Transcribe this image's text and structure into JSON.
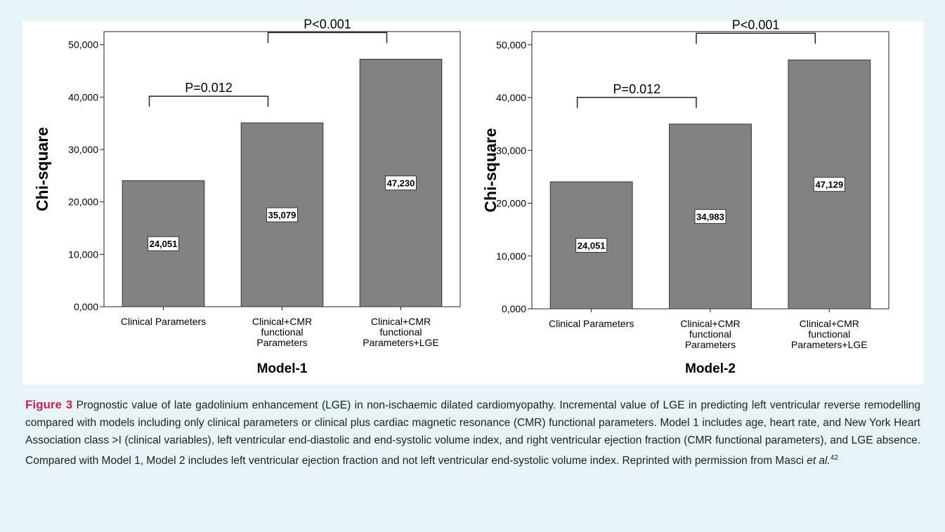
{
  "chart_data": [
    {
      "type": "bar",
      "ylabel": "Chi-square",
      "xlabel": "Model-1",
      "categories": [
        "Clinical Parameters",
        "Clinical+CMR\nfunctional\nParameters",
        "Clinical+CMR\nfunctional\nParameters+LGE"
      ],
      "values": [
        24.051,
        35.079,
        47.23
      ],
      "value_labels": [
        "24,051",
        "35,079",
        "47,230"
      ],
      "color": "#828282",
      "ylim": [
        0,
        52.5
      ],
      "yticks": [
        {
          "value": 0,
          "label": "0,000"
        },
        {
          "value": 10,
          "label": "10,000"
        },
        {
          "value": 20,
          "label": "20,000"
        },
        {
          "value": 30,
          "label": "30,000"
        },
        {
          "value": 40,
          "label": "40,000"
        },
        {
          "value": 50,
          "label": "50,000"
        }
      ],
      "annotations": [
        "P=0.012",
        "P<0.001"
      ]
    },
    {
      "type": "bar",
      "ylabel": "Chi-square",
      "xlabel": "Model-2",
      "categories": [
        "Clinical Parameters",
        "Clinical+CMR\nfunctional\nParameters",
        "Clinical+CMR\nfunctional\nParameters+LGE"
      ],
      "values": [
        24.051,
        34.983,
        47.129
      ],
      "value_labels": [
        "24,051",
        "34,983",
        "47,129"
      ],
      "color": "#828282",
      "ylim": [
        0,
        52.5
      ],
      "yticks": [
        {
          "value": 0,
          "label": "0,000"
        },
        {
          "value": 10,
          "label": "10,000"
        },
        {
          "value": 20,
          "label": "20,000"
        },
        {
          "value": 30,
          "label": "30,000"
        },
        {
          "value": 40,
          "label": "40,000"
        },
        {
          "value": 50,
          "label": "50,000"
        }
      ],
      "annotations": [
        "P=0.012",
        "P<0.001"
      ]
    }
  ],
  "caption": {
    "label": "Figure 3",
    "text": "Prognostic value of late gadolinium enhancement (LGE) in non-ischaemic dilated cardiomyopathy. Incremental value of LGE in predicting left ventricular reverse remodelling compared with models including only clinical parameters or clinical plus cardiac magnetic resonance (CMR) functional parameters. Model 1 includes age, heart rate, and New York Heart Association class >I (clinical variables), left ventricular end-diastolic and end-systolic volume index, and right ventricular ejection fraction (CMR functional parameters), and LGE absence. Compared with Model 1, Model 2 includes left ventricular ejection fraction and not left ventricular end-systolic volume index. Reprinted with permission from Masci",
    "italic": "et al.",
    "ref": "42"
  }
}
